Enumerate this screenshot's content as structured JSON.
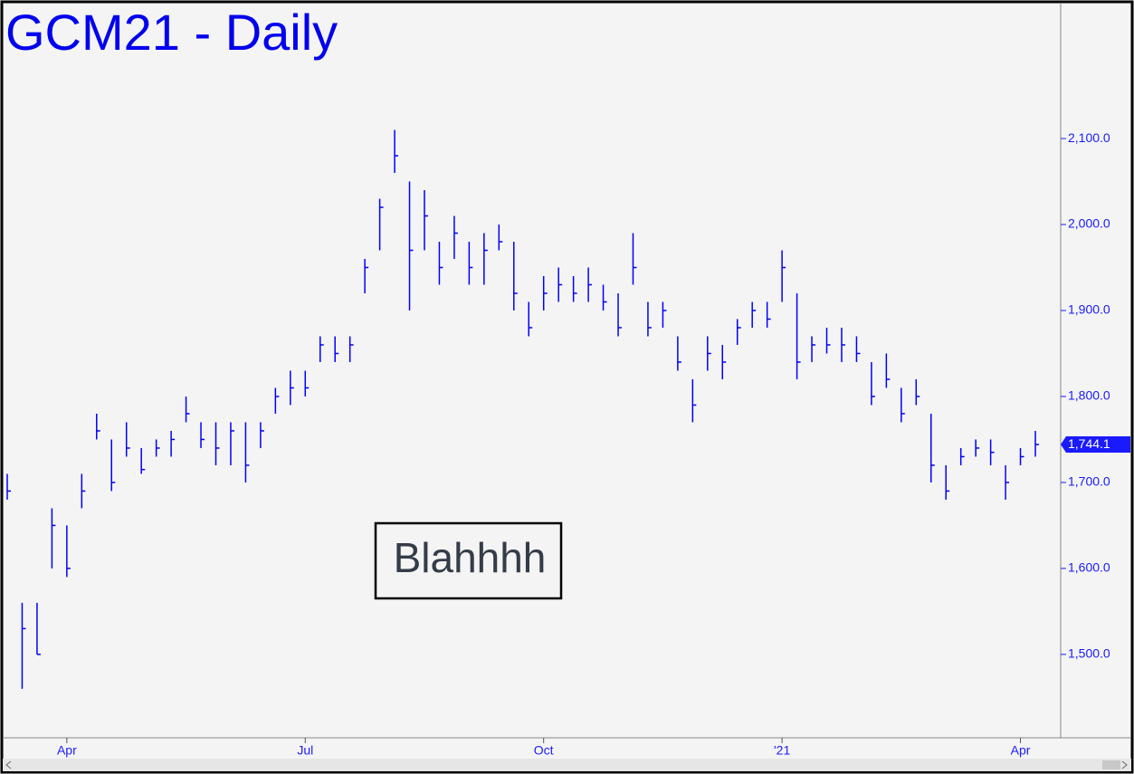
{
  "chart_data": {
    "type": "ohlc",
    "title": "GCM21 - Daily",
    "annotation": "Blahhhh",
    "color": "#0000ff",
    "categories": [
      null,
      null,
      null,
      null,
      "Apr",
      null,
      null,
      null,
      null,
      null,
      null,
      null,
      null,
      null,
      null,
      null,
      null,
      null,
      null,
      null,
      "Jul",
      null,
      null,
      null,
      null,
      null,
      null,
      null,
      null,
      null,
      null,
      null,
      null,
      null,
      null,
      null,
      "Oct",
      null,
      null,
      null,
      null,
      null,
      null,
      null,
      null,
      null,
      null,
      null,
      null,
      null,
      null,
      null,
      "'21",
      null,
      null,
      null,
      null,
      null,
      null,
      null,
      null,
      null,
      null,
      null,
      null,
      null,
      null,
      null,
      "Apr",
      null
    ],
    "high": [
      1710,
      1560,
      1560,
      1670,
      1650,
      1710,
      1780,
      1750,
      1770,
      1740,
      1750,
      1760,
      1800,
      1770,
      1770,
      1770,
      1770,
      1770,
      1810,
      1830,
      1830,
      1870,
      1870,
      1870,
      1960,
      2030,
      2110,
      2050,
      2040,
      1980,
      2010,
      1980,
      1990,
      2000,
      1980,
      1910,
      1940,
      1950,
      1940,
      1950,
      1930,
      1920,
      1990,
      1910,
      1910,
      1870,
      1820,
      1870,
      1860,
      1890,
      1910,
      1910,
      1970,
      1920,
      1870,
      1880,
      1880,
      1870,
      1840,
      1850,
      1810,
      1820,
      1780,
      1720,
      1740,
      1750,
      1750,
      1720,
      1740,
      1760
    ],
    "low": [
      1680,
      1460,
      1500,
      1600,
      1590,
      1670,
      1750,
      1690,
      1730,
      1710,
      1730,
      1730,
      1770,
      1740,
      1720,
      1720,
      1700,
      1740,
      1780,
      1790,
      1800,
      1840,
      1840,
      1840,
      1920,
      1970,
      2060,
      1900,
      1970,
      1930,
      1960,
      1930,
      1930,
      1970,
      1900,
      1870,
      1900,
      1910,
      1910,
      1910,
      1900,
      1870,
      1930,
      1870,
      1880,
      1830,
      1770,
      1830,
      1820,
      1860,
      1880,
      1880,
      1910,
      1820,
      1840,
      1850,
      1840,
      1840,
      1790,
      1810,
      1770,
      1790,
      1700,
      1680,
      1720,
      1730,
      1720,
      1680,
      1720,
      1730
    ],
    "close": [
      1690,
      1530,
      1500,
      1650,
      1600,
      1690,
      1760,
      1700,
      1740,
      1715,
      1740,
      1750,
      1780,
      1750,
      1740,
      1760,
      1720,
      1760,
      1800,
      1810,
      1810,
      1860,
      1850,
      1860,
      1950,
      2020,
      2080,
      1970,
      2010,
      1950,
      1990,
      1950,
      1970,
      1980,
      1920,
      1880,
      1920,
      1930,
      1920,
      1930,
      1910,
      1880,
      1950,
      1880,
      1900,
      1840,
      1790,
      1850,
      1840,
      1880,
      1900,
      1890,
      1950,
      1840,
      1860,
      1860,
      1860,
      1850,
      1800,
      1820,
      1780,
      1800,
      1720,
      1690,
      1730,
      1740,
      1735,
      1700,
      1730,
      1744.1
    ],
    "last": {
      "value": 1744.1,
      "label": "1,744.1"
    },
    "ylim": [
      1403,
      2258
    ],
    "yticks": [
      {
        "value": 1500,
        "label": "1,500.0"
      },
      {
        "value": 1600,
        "label": "1,600.0"
      },
      {
        "value": 1700,
        "label": "1,700.0"
      },
      {
        "value": 1800,
        "label": "1,800.0"
      },
      {
        "value": 1900,
        "label": "1,900.0"
      },
      {
        "value": 2000,
        "label": "2,000.0"
      },
      {
        "value": 2100,
        "label": "2,100.0"
      }
    ]
  }
}
